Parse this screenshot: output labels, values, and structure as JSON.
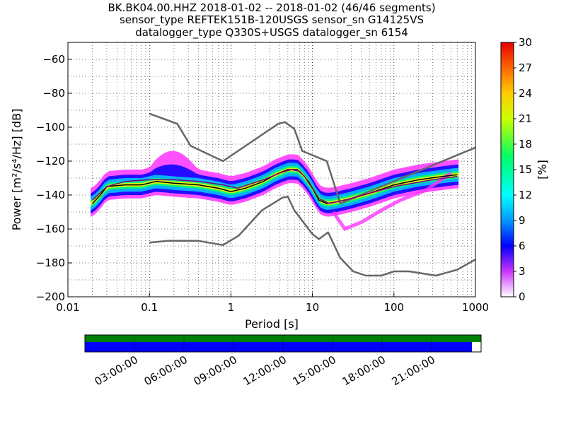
{
  "titles": {
    "line1": "BK.BK04.00.HHZ   2018-01-02 -- 2018-01-02  (46/46 segments)",
    "line2": "sensor_type REFTEK151B-120USGS sensor_sn G14125VS",
    "line3": "datalogger_type Q330S+USGS datalogger_sn 6154"
  },
  "chart_data": {
    "type": "heatmap",
    "subtype": "probabilistic power spectral density",
    "xlabel": "Period [s]",
    "ylabel": "Power [m²/s⁴/Hz] [dB]",
    "xscale": "log",
    "xlim": [
      0.01,
      1000
    ],
    "ylim": [
      -200,
      -50
    ],
    "xticks": [
      {
        "value": 0.01,
        "label": "0.01"
      },
      {
        "value": 0.1,
        "label": "0.1"
      },
      {
        "value": 1,
        "label": "1"
      },
      {
        "value": 10,
        "label": "10"
      },
      {
        "value": 100,
        "label": "100"
      },
      {
        "value": 1000,
        "label": "1000"
      }
    ],
    "yticks": [
      {
        "value": -60,
        "label": "−60"
      },
      {
        "value": -80,
        "label": "−80"
      },
      {
        "value": -100,
        "label": "−100"
      },
      {
        "value": -120,
        "label": "−120"
      },
      {
        "value": -140,
        "label": "−140"
      },
      {
        "value": -160,
        "label": "−160"
      },
      {
        "value": -180,
        "label": "−180"
      },
      {
        "value": -200,
        "label": "−200"
      }
    ],
    "colorbar": {
      "label": "[%]",
      "range": [
        0,
        30
      ],
      "ticks": [
        "0",
        "3",
        "6",
        "9",
        "12",
        "15",
        "18",
        "21",
        "24",
        "27",
        "30"
      ]
    },
    "series": [
      {
        "name": "NHNM",
        "color": "#666666",
        "points": [
          [
            0.1,
            -92
          ],
          [
            0.22,
            -98
          ],
          [
            0.32,
            -111
          ],
          [
            0.8,
            -120
          ],
          [
            3.8,
            -98
          ],
          [
            4.6,
            -97
          ],
          [
            6,
            -101
          ],
          [
            7.5,
            -114
          ],
          [
            15,
            -120
          ],
          [
            22,
            -145
          ],
          [
            1000,
            -112
          ]
        ]
      },
      {
        "name": "NLNM",
        "color": "#666666",
        "points": [
          [
            0.1,
            -168
          ],
          [
            0.17,
            -167
          ],
          [
            0.4,
            -167
          ],
          [
            0.8,
            -169.5
          ],
          [
            1.24,
            -164
          ],
          [
            2.4,
            -149
          ],
          [
            4.3,
            -141.5
          ],
          [
            5,
            -141
          ],
          [
            6,
            -149
          ],
          [
            10,
            -163
          ],
          [
            12,
            -166
          ],
          [
            15.6,
            -162
          ],
          [
            21.9,
            -177
          ],
          [
            31.6,
            -185
          ],
          [
            45,
            -187.5
          ],
          [
            70,
            -187.5
          ],
          [
            101,
            -185
          ],
          [
            154,
            -185
          ],
          [
            328,
            -187.5
          ],
          [
            600,
            -184
          ],
          [
            1000,
            -178
          ]
        ]
      },
      {
        "name": "Mode",
        "color": "#000000",
        "points": [
          [
            0.02,
            -145
          ],
          [
            0.025,
            -140
          ],
          [
            0.03,
            -135
          ],
          [
            0.05,
            -134
          ],
          [
            0.08,
            -134
          ],
          [
            0.12,
            -132
          ],
          [
            0.2,
            -133
          ],
          [
            0.4,
            -134
          ],
          [
            0.7,
            -136
          ],
          [
            1,
            -138
          ],
          [
            1.5,
            -136
          ],
          [
            2.5,
            -132
          ],
          [
            3.5,
            -128
          ],
          [
            5,
            -125
          ],
          [
            6.5,
            -125
          ],
          [
            8,
            -129
          ],
          [
            10,
            -136
          ],
          [
            12,
            -143
          ],
          [
            15,
            -145
          ],
          [
            20,
            -144
          ],
          [
            30,
            -142
          ],
          [
            50,
            -139
          ],
          [
            100,
            -134
          ],
          [
            200,
            -131
          ],
          [
            400,
            -129
          ],
          [
            600,
            -128
          ]
        ]
      },
      {
        "name": "Mean",
        "color": "#800080",
        "points": [
          [
            0.02,
            -143
          ],
          [
            0.03,
            -135
          ],
          [
            0.05,
            -132
          ],
          [
            0.1,
            -131
          ],
          [
            0.2,
            -131
          ],
          [
            0.4,
            -132
          ],
          [
            0.8,
            -134
          ],
          [
            1.2,
            -136
          ],
          [
            2.5,
            -131
          ],
          [
            4,
            -127
          ],
          [
            5.5,
            -125
          ],
          [
            7,
            -126
          ],
          [
            9,
            -132
          ],
          [
            12,
            -142
          ],
          [
            16,
            -145
          ],
          [
            25,
            -143
          ],
          [
            50,
            -139
          ],
          [
            100,
            -135
          ],
          [
            300,
            -131
          ],
          [
            600,
            -129
          ]
        ]
      }
    ]
  },
  "time_axis": {
    "labels": [
      "03:00:00",
      "06:00:00",
      "09:00:00",
      "12:00:00",
      "15:00:00",
      "18:00:00",
      "21:00:00"
    ],
    "coverage_fraction": 0.977
  },
  "colors": {
    "data_coverage": "#0000ff",
    "data_availability": "#008000",
    "noise_model": "#666666"
  }
}
